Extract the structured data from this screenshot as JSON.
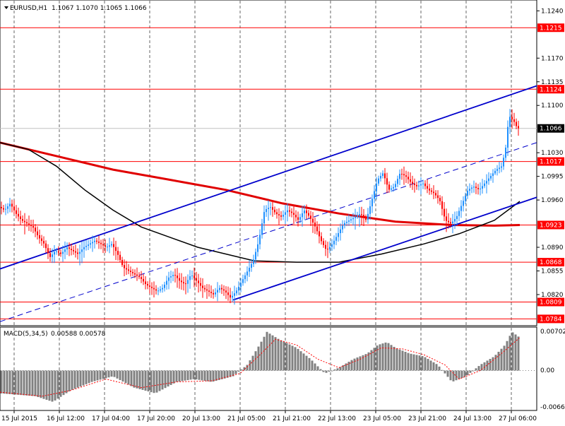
{
  "header": {
    "symbol": "EURUSD,H1",
    "ohlc": "1.1067 1.1070 1.1065 1.1066"
  },
  "macd": {
    "label": "MACD(5,34,5)",
    "values": "0.00588 0.00578",
    "ticks": [
      "0.00702",
      "0.00",
      "-0.00664"
    ]
  },
  "colors": {
    "up": "#1e90ff",
    "down": "#ff0000",
    "hline": "#ff0000",
    "ma_slow": "#e00000",
    "ma_fast": "#000000",
    "channel": "#0000cc",
    "histogram": "#808080",
    "signal": "#ff0000",
    "current_price_tag": "#000000"
  },
  "chart_data": [
    {
      "type": "candlestick",
      "symbol": "EURUSD",
      "timeframe": "H1",
      "ylim": [
        1.0775,
        1.1255
      ],
      "y_ticks": [
        "1.1240",
        "1.1170",
        "1.1135",
        "1.1100",
        "1.1030",
        "1.0995",
        "1.0960",
        "1.0890",
        "1.0855",
        "1.0820"
      ],
      "x_ticks": [
        "15 Jul 2015",
        "16 Jul 12:00",
        "17 Jul 04:00",
        "17 Jul 20:00",
        "20 Jul 13:00",
        "21 Jul 05:00",
        "21 Jul 21:00",
        "22 Jul 13:00",
        "23 Jul 05:00",
        "23 Jul 21:00",
        "24 Jul 13:00",
        "27 Jul 06:00"
      ],
      "horizontal_levels": [
        "1.1215",
        "1.1124",
        "1.1017",
        "1.0923",
        "1.0868",
        "1.0809",
        "1.0784"
      ],
      "current_price": "1.1066",
      "grid": true,
      "price_path": [
        [
          0,
          1.095
        ],
        [
          8,
          1.0945
        ],
        [
          16,
          1.0955
        ],
        [
          24,
          1.094
        ],
        [
          32,
          1.093
        ],
        [
          40,
          1.0925
        ],
        [
          48,
          1.092
        ],
        [
          56,
          1.0905
        ],
        [
          64,
          1.0895
        ],
        [
          72,
          1.0875
        ],
        [
          80,
          1.0885
        ],
        [
          88,
          1.088
        ],
        [
          96,
          1.089
        ],
        [
          104,
          1.0885
        ],
        [
          112,
          1.088
        ],
        [
          120,
          1.089
        ],
        [
          128,
          1.0895
        ],
        [
          136,
          1.09
        ],
        [
          144,
          1.0895
        ],
        [
          152,
          1.089
        ],
        [
          160,
          1.0895
        ],
        [
          168,
          1.088
        ],
        [
          176,
          1.086
        ],
        [
          184,
          1.0855
        ],
        [
          192,
          1.085
        ],
        [
          200,
          1.0845
        ],
        [
          208,
          1.0835
        ],
        [
          216,
          1.083
        ],
        [
          224,
          1.0825
        ],
        [
          232,
          1.083
        ],
        [
          240,
          1.0845
        ],
        [
          248,
          1.085
        ],
        [
          256,
          1.084
        ],
        [
          264,
          1.0835
        ],
        [
          272,
          1.085
        ],
        [
          280,
          1.084
        ],
        [
          288,
          1.083
        ],
        [
          296,
          1.0825
        ],
        [
          304,
          1.082
        ],
        [
          312,
          1.083
        ],
        [
          320,
          1.0825
        ],
        [
          328,
          1.0815
        ],
        [
          336,
          1.0825
        ],
        [
          344,
          1.084
        ],
        [
          352,
          1.0855
        ],
        [
          360,
          1.087
        ],
        [
          368,
          1.09
        ],
        [
          376,
          1.0945
        ],
        [
          384,
          1.095
        ],
        [
          392,
          1.094
        ],
        [
          400,
          1.0935
        ],
        [
          408,
          1.0945
        ],
        [
          416,
          1.094
        ],
        [
          424,
          1.093
        ],
        [
          432,
          1.0945
        ],
        [
          440,
          1.0935
        ],
        [
          448,
          1.092
        ],
        [
          456,
          1.09
        ],
        [
          464,
          1.0885
        ],
        [
          472,
          1.0895
        ],
        [
          480,
          1.091
        ],
        [
          488,
          1.0925
        ],
        [
          496,
          1.093
        ],
        [
          504,
          1.0935
        ],
        [
          512,
          1.094
        ],
        [
          520,
          1.093
        ],
        [
          528,
          1.096
        ],
        [
          536,
          1.099
        ],
        [
          544,
          1.1
        ],
        [
          552,
          1.0975
        ],
        [
          560,
          1.098
        ],
        [
          568,
          1.1
        ],
        [
          576,
          1.0995
        ],
        [
          584,
          1.0985
        ],
        [
          592,
          1.098
        ],
        [
          600,
          1.0985
        ],
        [
          608,
          1.0975
        ],
        [
          616,
          1.097
        ],
        [
          624,
          1.096
        ],
        [
          632,
          1.093
        ],
        [
          640,
          1.0925
        ],
        [
          648,
          1.0935
        ],
        [
          656,
          1.0955
        ],
        [
          664,
          1.0975
        ],
        [
          672,
          1.098
        ],
        [
          680,
          1.0975
        ],
        [
          688,
          1.0985
        ],
        [
          696,
          1.0995
        ],
        [
          704,
          1.1005
        ],
        [
          712,
          1.101
        ],
        [
          718,
          1.104
        ],
        [
          722,
          1.1085
        ],
        [
          726,
          1.108
        ],
        [
          730,
          1.1075
        ],
        [
          734,
          1.1066
        ]
      ],
      "ma_slow": [
        [
          0,
          1.1045
        ],
        [
          80,
          1.1025
        ],
        [
          160,
          1.1005
        ],
        [
          240,
          1.099
        ],
        [
          320,
          1.0975
        ],
        [
          400,
          1.0955
        ],
        [
          480,
          1.094
        ],
        [
          560,
          1.0928
        ],
        [
          640,
          1.0923
        ],
        [
          700,
          1.0922
        ],
        [
          736,
          1.0923
        ]
      ],
      "ma_fast": [
        [
          0,
          1.1045
        ],
        [
          40,
          1.1035
        ],
        [
          80,
          1.101
        ],
        [
          120,
          1.0975
        ],
        [
          160,
          1.0945
        ],
        [
          200,
          1.092
        ],
        [
          240,
          1.0905
        ],
        [
          280,
          1.089
        ],
        [
          320,
          1.088
        ],
        [
          360,
          1.087
        ],
        [
          420,
          1.0868
        ],
        [
          480,
          1.0868
        ],
        [
          540,
          1.088
        ],
        [
          600,
          1.0895
        ],
        [
          650,
          1.091
        ],
        [
          700,
          1.093
        ],
        [
          736,
          1.0958
        ]
      ],
      "channel_upper": [
        [
          0,
          1.0858
        ],
        [
          760,
          1.1129
        ]
      ],
      "channel_lower": [
        [
          330,
          1.0812
        ],
        [
          760,
          1.0964
        ]
      ],
      "channel_mid": [
        [
          0,
          1.078
        ],
        [
          760,
          1.1045
        ]
      ]
    },
    {
      "type": "bar",
      "name": "MACD(5,34,5)",
      "ylim": [
        -0.00664,
        0.00702
      ],
      "histogram": [
        [
          0,
          -0.004
        ],
        [
          50,
          -0.0045
        ],
        [
          75,
          -0.0055
        ],
        [
          100,
          -0.0035
        ],
        [
          130,
          -0.002
        ],
        [
          160,
          -0.001
        ],
        [
          190,
          -0.003
        ],
        [
          220,
          -0.004
        ],
        [
          250,
          -0.002
        ],
        [
          275,
          -0.0015
        ],
        [
          300,
          -0.002
        ],
        [
          330,
          -0.001
        ],
        [
          350,
          0.001
        ],
        [
          365,
          0.004
        ],
        [
          378,
          0.0068
        ],
        [
          395,
          0.0055
        ],
        [
          420,
          0.004
        ],
        [
          440,
          0.002
        ],
        [
          460,
          -0.0005
        ],
        [
          480,
          0.0005
        ],
        [
          500,
          0.002
        ],
        [
          520,
          0.003
        ],
        [
          535,
          0.0045
        ],
        [
          548,
          0.005
        ],
        [
          560,
          0.004
        ],
        [
          580,
          0.003
        ],
        [
          600,
          0.0025
        ],
        [
          620,
          0.001
        ],
        [
          640,
          -0.002
        ],
        [
          660,
          -0.001
        ],
        [
          680,
          0.001
        ],
        [
          700,
          0.0025
        ],
        [
          715,
          0.0045
        ],
        [
          725,
          0.0068
        ],
        [
          736,
          0.0058
        ]
      ],
      "signal": [
        [
          0,
          -0.0038
        ],
        [
          60,
          -0.0045
        ],
        [
          100,
          -0.0035
        ],
        [
          150,
          -0.0015
        ],
        [
          200,
          -0.003
        ],
        [
          250,
          -0.002
        ],
        [
          300,
          -0.0018
        ],
        [
          340,
          -0.0005
        ],
        [
          370,
          0.003
        ],
        [
          390,
          0.0055
        ],
        [
          420,
          0.0045
        ],
        [
          450,
          0.002
        ],
        [
          480,
          0.0005
        ],
        [
          510,
          0.002
        ],
        [
          540,
          0.004
        ],
        [
          570,
          0.0038
        ],
        [
          600,
          0.0028
        ],
        [
          630,
          0.001
        ],
        [
          650,
          -0.0015
        ],
        [
          680,
          0.0
        ],
        [
          710,
          0.003
        ],
        [
          736,
          0.0058
        ]
      ]
    }
  ]
}
